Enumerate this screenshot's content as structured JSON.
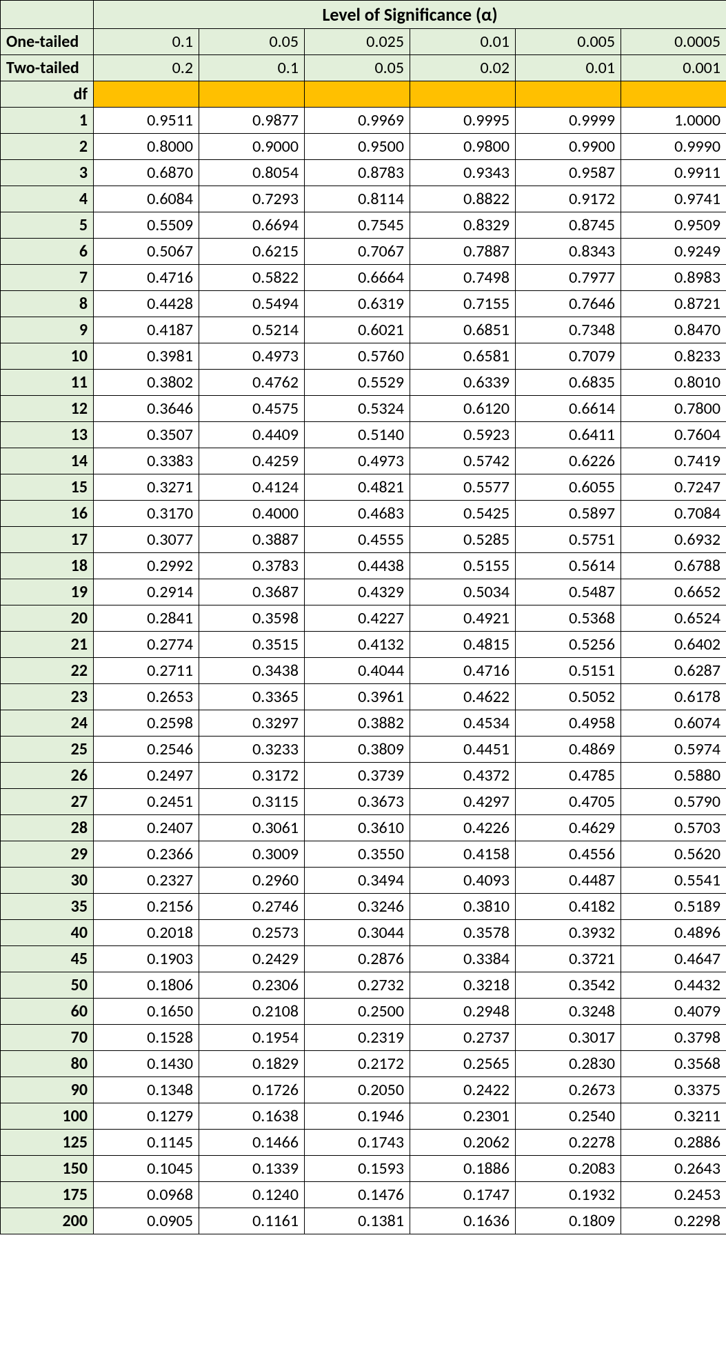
{
  "header": {
    "title": "Level of Significance (α)",
    "one_tailed_label": "One-tailed",
    "two_tailed_label": "Two-tailed",
    "df_label": "df",
    "one_tailed": [
      "0.1",
      "0.05",
      "0.025",
      "0.01",
      "0.005",
      "0.0005"
    ],
    "two_tailed": [
      "0.2",
      "0.1",
      "0.05",
      "0.02",
      "0.01",
      "0.001"
    ]
  },
  "rows": [
    {
      "df": "1",
      "v": [
        "0.9511",
        "0.9877",
        "0.9969",
        "0.9995",
        "0.9999",
        "1.0000"
      ]
    },
    {
      "df": "2",
      "v": [
        "0.8000",
        "0.9000",
        "0.9500",
        "0.9800",
        "0.9900",
        "0.9990"
      ]
    },
    {
      "df": "3",
      "v": [
        "0.6870",
        "0.8054",
        "0.8783",
        "0.9343",
        "0.9587",
        "0.9911"
      ]
    },
    {
      "df": "4",
      "v": [
        "0.6084",
        "0.7293",
        "0.8114",
        "0.8822",
        "0.9172",
        "0.9741"
      ]
    },
    {
      "df": "5",
      "v": [
        "0.5509",
        "0.6694",
        "0.7545",
        "0.8329",
        "0.8745",
        "0.9509"
      ]
    },
    {
      "df": "6",
      "v": [
        "0.5067",
        "0.6215",
        "0.7067",
        "0.7887",
        "0.8343",
        "0.9249"
      ]
    },
    {
      "df": "7",
      "v": [
        "0.4716",
        "0.5822",
        "0.6664",
        "0.7498",
        "0.7977",
        "0.8983"
      ]
    },
    {
      "df": "8",
      "v": [
        "0.4428",
        "0.5494",
        "0.6319",
        "0.7155",
        "0.7646",
        "0.8721"
      ]
    },
    {
      "df": "9",
      "v": [
        "0.4187",
        "0.5214",
        "0.6021",
        "0.6851",
        "0.7348",
        "0.8470"
      ]
    },
    {
      "df": "10",
      "v": [
        "0.3981",
        "0.4973",
        "0.5760",
        "0.6581",
        "0.7079",
        "0.8233"
      ]
    },
    {
      "df": "11",
      "v": [
        "0.3802",
        "0.4762",
        "0.5529",
        "0.6339",
        "0.6835",
        "0.8010"
      ]
    },
    {
      "df": "12",
      "v": [
        "0.3646",
        "0.4575",
        "0.5324",
        "0.6120",
        "0.6614",
        "0.7800"
      ]
    },
    {
      "df": "13",
      "v": [
        "0.3507",
        "0.4409",
        "0.5140",
        "0.5923",
        "0.6411",
        "0.7604"
      ]
    },
    {
      "df": "14",
      "v": [
        "0.3383",
        "0.4259",
        "0.4973",
        "0.5742",
        "0.6226",
        "0.7419"
      ]
    },
    {
      "df": "15",
      "v": [
        "0.3271",
        "0.4124",
        "0.4821",
        "0.5577",
        "0.6055",
        "0.7247"
      ]
    },
    {
      "df": "16",
      "v": [
        "0.3170",
        "0.4000",
        "0.4683",
        "0.5425",
        "0.5897",
        "0.7084"
      ]
    },
    {
      "df": "17",
      "v": [
        "0.3077",
        "0.3887",
        "0.4555",
        "0.5285",
        "0.5751",
        "0.6932"
      ]
    },
    {
      "df": "18",
      "v": [
        "0.2992",
        "0.3783",
        "0.4438",
        "0.5155",
        "0.5614",
        "0.6788"
      ]
    },
    {
      "df": "19",
      "v": [
        "0.2914",
        "0.3687",
        "0.4329",
        "0.5034",
        "0.5487",
        "0.6652"
      ]
    },
    {
      "df": "20",
      "v": [
        "0.2841",
        "0.3598",
        "0.4227",
        "0.4921",
        "0.5368",
        "0.6524"
      ]
    },
    {
      "df": "21",
      "v": [
        "0.2774",
        "0.3515",
        "0.4132",
        "0.4815",
        "0.5256",
        "0.6402"
      ]
    },
    {
      "df": "22",
      "v": [
        "0.2711",
        "0.3438",
        "0.4044",
        "0.4716",
        "0.5151",
        "0.6287"
      ]
    },
    {
      "df": "23",
      "v": [
        "0.2653",
        "0.3365",
        "0.3961",
        "0.4622",
        "0.5052",
        "0.6178"
      ]
    },
    {
      "df": "24",
      "v": [
        "0.2598",
        "0.3297",
        "0.3882",
        "0.4534",
        "0.4958",
        "0.6074"
      ]
    },
    {
      "df": "25",
      "v": [
        "0.2546",
        "0.3233",
        "0.3809",
        "0.4451",
        "0.4869",
        "0.5974"
      ]
    },
    {
      "df": "26",
      "v": [
        "0.2497",
        "0.3172",
        "0.3739",
        "0.4372",
        "0.4785",
        "0.5880"
      ]
    },
    {
      "df": "27",
      "v": [
        "0.2451",
        "0.3115",
        "0.3673",
        "0.4297",
        "0.4705",
        "0.5790"
      ]
    },
    {
      "df": "28",
      "v": [
        "0.2407",
        "0.3061",
        "0.3610",
        "0.4226",
        "0.4629",
        "0.5703"
      ]
    },
    {
      "df": "29",
      "v": [
        "0.2366",
        "0.3009",
        "0.3550",
        "0.4158",
        "0.4556",
        "0.5620"
      ]
    },
    {
      "df": "30",
      "v": [
        "0.2327",
        "0.2960",
        "0.3494",
        "0.4093",
        "0.4487",
        "0.5541"
      ]
    },
    {
      "df": "35",
      "v": [
        "0.2156",
        "0.2746",
        "0.3246",
        "0.3810",
        "0.4182",
        "0.5189"
      ]
    },
    {
      "df": "40",
      "v": [
        "0.2018",
        "0.2573",
        "0.3044",
        "0.3578",
        "0.3932",
        "0.4896"
      ]
    },
    {
      "df": "45",
      "v": [
        "0.1903",
        "0.2429",
        "0.2876",
        "0.3384",
        "0.3721",
        "0.4647"
      ]
    },
    {
      "df": "50",
      "v": [
        "0.1806",
        "0.2306",
        "0.2732",
        "0.3218",
        "0.3542",
        "0.4432"
      ]
    },
    {
      "df": "60",
      "v": [
        "0.1650",
        "0.2108",
        "0.2500",
        "0.2948",
        "0.3248",
        "0.4079"
      ]
    },
    {
      "df": "70",
      "v": [
        "0.1528",
        "0.1954",
        "0.2319",
        "0.2737",
        "0.3017",
        "0.3798"
      ]
    },
    {
      "df": "80",
      "v": [
        "0.1430",
        "0.1829",
        "0.2172",
        "0.2565",
        "0.2830",
        "0.3568"
      ]
    },
    {
      "df": "90",
      "v": [
        "0.1348",
        "0.1726",
        "0.2050",
        "0.2422",
        "0.2673",
        "0.3375"
      ]
    },
    {
      "df": "100",
      "v": [
        "0.1279",
        "0.1638",
        "0.1946",
        "0.2301",
        "0.2540",
        "0.3211"
      ]
    },
    {
      "df": "125",
      "v": [
        "0.1145",
        "0.1466",
        "0.1743",
        "0.2062",
        "0.2278",
        "0.2886"
      ]
    },
    {
      "df": "150",
      "v": [
        "0.1045",
        "0.1339",
        "0.1593",
        "0.1886",
        "0.2083",
        "0.2643"
      ]
    },
    {
      "df": "175",
      "v": [
        "0.0968",
        "0.1240",
        "0.1476",
        "0.1747",
        "0.1932",
        "0.2453"
      ]
    },
    {
      "df": "200",
      "v": [
        "0.0905",
        "0.1161",
        "0.1381",
        "0.1636",
        "0.1809",
        "0.2298"
      ]
    }
  ],
  "style": {
    "green_bg": "#e2efda",
    "yellow_bg": "#ffc000",
    "border_color": "#000000",
    "font_family": "Calibri, Arial, sans-serif",
    "cell_fontsize": 24,
    "title_fontsize": 26,
    "num_columns": 6
  }
}
